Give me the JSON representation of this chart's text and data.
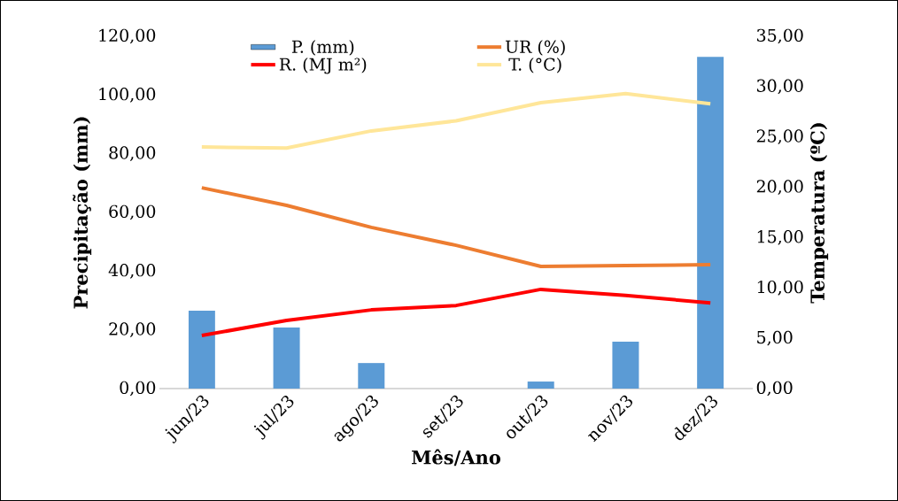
{
  "chart_data": {
    "type": "bar",
    "xlabel": "Mês/Ano",
    "ylabel": "Precipitação (mm)",
    "y2label": "Temperatura (ºC)",
    "categories": [
      "jun/23",
      "jul/23",
      "ago/23",
      "set/23",
      "out/23",
      "nov/23",
      "dez/23"
    ],
    "series": [
      {
        "name": "P. (mm)",
        "color": "#5b9bd5",
        "values": [
          26.5,
          20.8,
          8.7,
          0,
          2.4,
          16.0,
          113.0
        ]
      },
      {
        "name": "UR (%)",
        "type": "line",
        "color": "#ed7d31",
        "values": [
          68.4,
          62.4,
          54.9,
          48.8,
          41.6,
          41.9,
          42.2
        ]
      },
      {
        "name": "R. (MJ m²)",
        "type": "line",
        "color": "#ff0000",
        "values": [
          18.1,
          23.2,
          26.8,
          28.3,
          33.8,
          31.7,
          29.2
        ]
      },
      {
        "name": "T. (°C)",
        "type": "line",
        "color": "#ffe699",
        "axis": "y2",
        "values": [
          24.0,
          23.9,
          25.6,
          26.6,
          28.4,
          29.3,
          28.3
        ]
      }
    ],
    "ylim": [
      0,
      120
    ],
    "yticks": [
      {
        "value": 0,
        "label": "0,00"
      },
      {
        "value": 20,
        "label": "20,00"
      },
      {
        "value": 40,
        "label": "40,00"
      },
      {
        "value": 60,
        "label": "60,00"
      },
      {
        "value": 80,
        "label": "80,00"
      },
      {
        "value": 100,
        "label": "100,00"
      },
      {
        "value": 120,
        "label": "120,00"
      }
    ],
    "y2lim": [
      0,
      35
    ],
    "y2ticks": [
      {
        "value": 0,
        "label": "0,00"
      },
      {
        "value": 5,
        "label": "5,00"
      },
      {
        "value": 10,
        "label": "10,00"
      },
      {
        "value": 15,
        "label": "15,00"
      },
      {
        "value": 20,
        "label": "20,00"
      },
      {
        "value": 25,
        "label": "25,00"
      },
      {
        "value": 30,
        "label": "30,00"
      },
      {
        "value": 35,
        "label": "35,00"
      }
    ],
    "legend": "top",
    "grid": false
  }
}
